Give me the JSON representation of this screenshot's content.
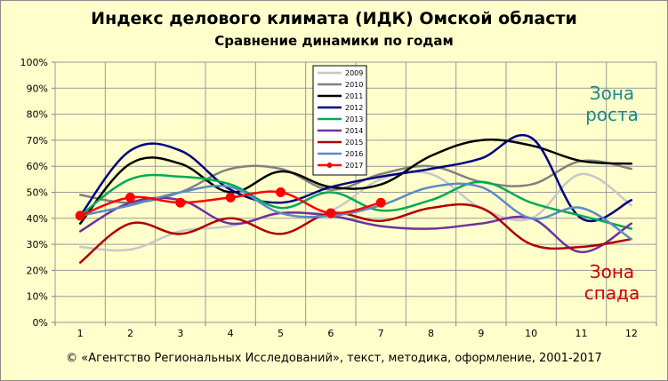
{
  "header": {
    "title": "Индекс делового климата (ИДК) Омской области",
    "subtitle": "Сравнение динамики  по годам"
  },
  "footer": {
    "copyright": "© «Агентство Региональных  Исследований»,  текст, методика, оформление,  2001-2017"
  },
  "colors": {
    "background": "#ffffcc",
    "growth_zone": "#1a8a8a",
    "recession_zone": "#cc0000"
  },
  "chart_data": {
    "type": "line",
    "title": "Индекс делового климата (ИДК) Омской области",
    "subtitle": "Сравнение динамики  по годам",
    "xlabel": "",
    "ylabel": "",
    "categories": [
      "1",
      "2",
      "3",
      "4",
      "5",
      "6",
      "7",
      "8",
      "9",
      "10",
      "11",
      "12"
    ],
    "ylim": [
      0,
      100
    ],
    "y_ticks": [
      "0%",
      "10%",
      "20%",
      "30%",
      "40%",
      "50%",
      "60%",
      "70%",
      "80%",
      "90%",
      "100%"
    ],
    "grid": true,
    "legend_position": "top-center",
    "annotations": [
      {
        "text_lines": [
          "Зона",
          "роста"
        ],
        "color": "#1a8a8a"
      },
      {
        "text_lines": [
          "Зона",
          "спада"
        ],
        "color": "#cc0000"
      }
    ],
    "series": [
      {
        "name": "2009",
        "color": "#c8c8c8",
        "markers": false,
        "values": [
          29,
          28,
          35,
          37,
          42,
          43,
          55,
          57,
          44,
          40,
          57,
          45
        ]
      },
      {
        "name": "2010",
        "color": "#808080",
        "markers": false,
        "values": [
          49,
          46,
          50,
          59,
          59,
          51,
          57,
          60,
          54,
          53,
          62,
          59
        ]
      },
      {
        "name": "2011",
        "color": "#000000",
        "markers": false,
        "values": [
          38,
          61,
          61,
          50,
          58,
          52,
          53,
          64,
          70,
          68,
          62,
          61
        ]
      },
      {
        "name": "2012",
        "color": "#000080",
        "markers": false,
        "values": [
          41,
          66,
          66,
          51,
          46,
          52,
          56,
          59,
          63,
          71,
          40,
          47
        ]
      },
      {
        "name": "2013",
        "color": "#00aa55",
        "markers": false,
        "values": [
          41,
          55,
          56,
          53,
          44,
          50,
          43,
          47,
          54,
          46,
          41,
          36
        ]
      },
      {
        "name": "2014",
        "color": "#7030a0",
        "markers": false,
        "values": [
          35,
          46,
          47,
          38,
          42,
          41,
          37,
          36,
          38,
          40,
          27,
          38
        ]
      },
      {
        "name": "2015",
        "color": "#b00000",
        "markers": false,
        "values": [
          23,
          38,
          34,
          40,
          34,
          42,
          39,
          44,
          44,
          30,
          29,
          32
        ]
      },
      {
        "name": "2016",
        "color": "#5b8ac6",
        "markers": false,
        "values": [
          41,
          45,
          50,
          52,
          42,
          41,
          45,
          52,
          52,
          40,
          44,
          32
        ]
      },
      {
        "name": "2017",
        "color": "#ff0000",
        "markers": true,
        "values": [
          41,
          48,
          46,
          48,
          50,
          42,
          46,
          null,
          null,
          null,
          null,
          null
        ]
      }
    ]
  }
}
